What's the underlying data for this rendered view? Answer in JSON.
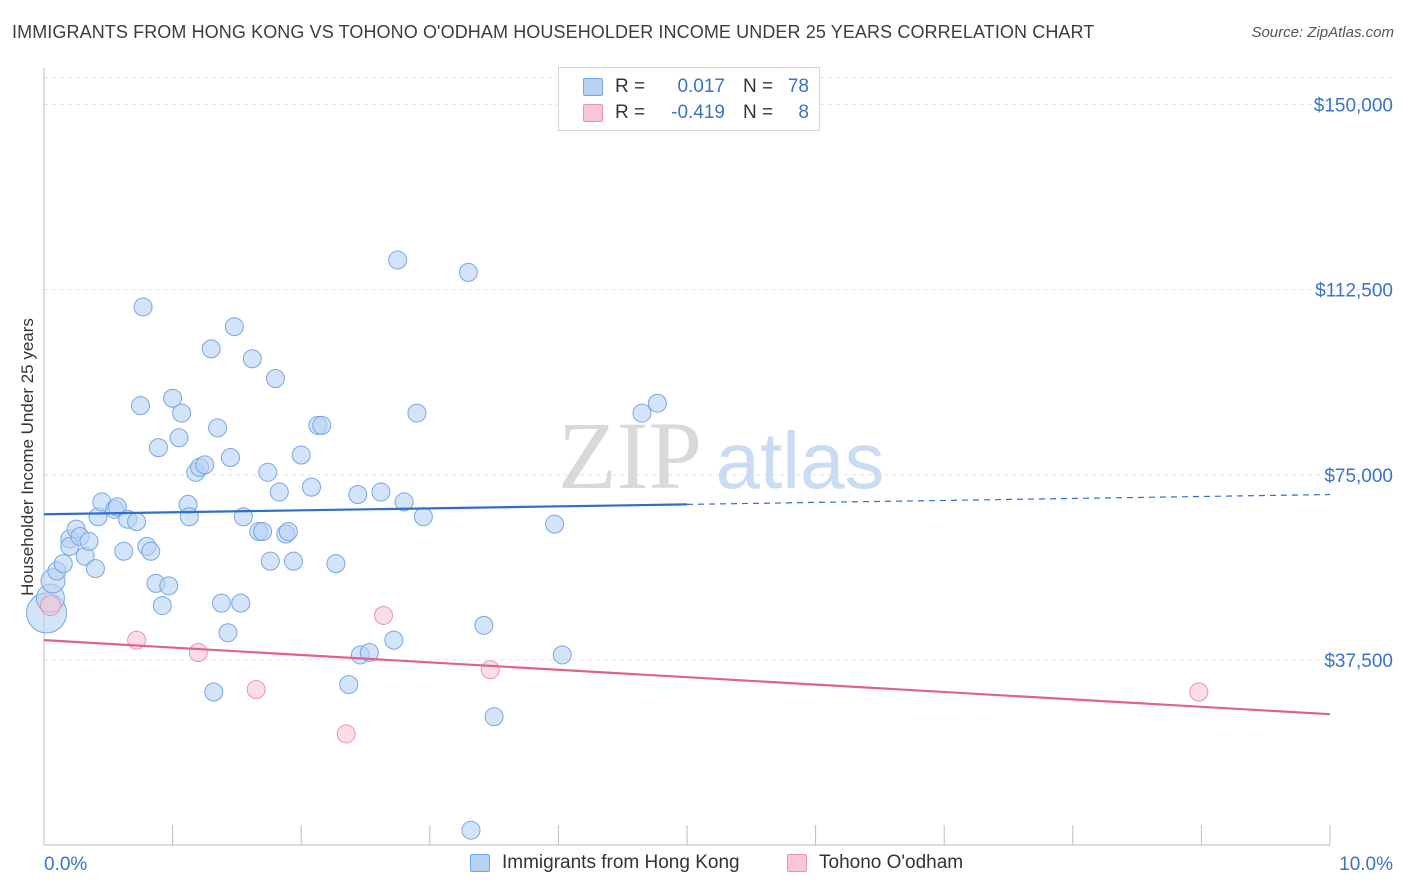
{
  "title": "IMMIGRANTS FROM HONG KONG VS TOHONO O'ODHAM HOUSEHOLDER INCOME UNDER 25 YEARS CORRELATION CHART",
  "source": "Source: ZipAtlas.com",
  "watermark": {
    "zip": "ZIP",
    "atlas": "atlas"
  },
  "legend": {
    "rows": [
      {
        "r_label": "R =",
        "r_value": "0.017",
        "n_label": "N =",
        "n_value": "78",
        "fill": "#b8d2f3",
        "stroke": "#7aa6e0"
      },
      {
        "r_label": "R =",
        "r_value": "-0.419",
        "n_label": "N =",
        "n_value": "8",
        "fill": "#f9c6d5",
        "stroke": "#ec94b0"
      }
    ]
  },
  "bottom_legend": [
    {
      "label": "Immigrants from Hong Kong",
      "fill": "#b8d2f3",
      "stroke": "#7aa6e0"
    },
    {
      "label": "Tohono O'odham",
      "fill": "#f9c6d5",
      "stroke": "#ec94b0"
    }
  ],
  "colors": {
    "blue_line": "#2f6fcc",
    "pink_line": "#e0608f",
    "tick_label": "#3a72c9",
    "grid": "#e3e3e3"
  },
  "chart_data": {
    "type": "scatter",
    "title": "IMMIGRANTS FROM HONG KONG VS TOHONO O'ODHAM HOUSEHOLDER INCOME UNDER 25 YEARS CORRELATION CHART",
    "xlabel": "",
    "ylabel": "Householder Income Under 25 years",
    "xlim": [
      0,
      10
    ],
    "ylim": [
      0,
      157000
    ],
    "x_tick_labels": [
      {
        "value": 0,
        "label": "0.0%"
      },
      {
        "value": 10,
        "label": "10.0%"
      }
    ],
    "y_ticks": [
      {
        "value": 37500,
        "label": "$37,500"
      },
      {
        "value": 75000,
        "label": "$75,000"
      },
      {
        "value": 112500,
        "label": "$112,500"
      },
      {
        "value": 150000,
        "label": "$150,000"
      }
    ],
    "grid": true,
    "series": [
      {
        "name": "Immigrants from Hong Kong",
        "color": "#b8d2f3",
        "stroke": "#7aa6e0",
        "trend": {
          "x0": 0,
          "y0": 67000,
          "x1": 5,
          "y1": 69000,
          "x_end": 10,
          "y_end": 71000,
          "solid_until": 5
        },
        "points": [
          [
            0.02,
            47000,
            20
          ],
          [
            0.05,
            50000,
            14
          ],
          [
            0.07,
            53500,
            12
          ],
          [
            0.1,
            55500,
            9
          ],
          [
            0.15,
            57000,
            9
          ],
          [
            0.2,
            62000,
            9
          ],
          [
            0.2,
            60500,
            9
          ],
          [
            0.25,
            64000,
            9
          ],
          [
            0.28,
            62500,
            9
          ],
          [
            0.32,
            58500,
            9
          ],
          [
            0.35,
            61500,
            9
          ],
          [
            0.4,
            56000,
            9
          ],
          [
            0.42,
            66500,
            9
          ],
          [
            0.45,
            69500,
            9
          ],
          [
            0.55,
            68000,
            9
          ],
          [
            0.57,
            68500,
            9
          ],
          [
            0.62,
            59500,
            9
          ],
          [
            0.65,
            66000,
            9
          ],
          [
            0.72,
            65500,
            9
          ],
          [
            0.75,
            89000,
            9
          ],
          [
            0.77,
            109000,
            9
          ],
          [
            0.8,
            60500,
            9
          ],
          [
            0.83,
            59500,
            9
          ],
          [
            0.87,
            53000,
            9
          ],
          [
            0.89,
            80500,
            9
          ],
          [
            0.92,
            48500,
            9
          ],
          [
            0.97,
            52500,
            9
          ],
          [
            1.0,
            90500,
            9
          ],
          [
            1.05,
            82500,
            9
          ],
          [
            1.07,
            87500,
            9
          ],
          [
            1.12,
            69000,
            9
          ],
          [
            1.13,
            66500,
            9
          ],
          [
            1.18,
            75500,
            9
          ],
          [
            1.21,
            76500,
            9
          ],
          [
            1.25,
            77000,
            9
          ],
          [
            1.3,
            100500,
            9
          ],
          [
            1.32,
            31000,
            9
          ],
          [
            1.35,
            84500,
            9
          ],
          [
            1.38,
            49000,
            9
          ],
          [
            1.43,
            43000,
            9
          ],
          [
            1.45,
            78500,
            9
          ],
          [
            1.48,
            105000,
            9
          ],
          [
            1.53,
            49000,
            9
          ],
          [
            1.55,
            66500,
            9
          ],
          [
            1.62,
            98500,
            9
          ],
          [
            1.67,
            63500,
            9
          ],
          [
            1.7,
            63500,
            9
          ],
          [
            1.74,
            75500,
            9
          ],
          [
            1.76,
            57500,
            9
          ],
          [
            1.8,
            94500,
            9
          ],
          [
            1.83,
            71500,
            9
          ],
          [
            1.88,
            63000,
            9
          ],
          [
            1.9,
            63500,
            9
          ],
          [
            1.94,
            57500,
            9
          ],
          [
            2.0,
            79000,
            9
          ],
          [
            2.08,
            72500,
            9
          ],
          [
            2.13,
            85000,
            9
          ],
          [
            2.16,
            85000,
            9
          ],
          [
            2.27,
            57000,
            9
          ],
          [
            2.37,
            32500,
            9
          ],
          [
            2.44,
            71000,
            9
          ],
          [
            2.46,
            38500,
            9
          ],
          [
            2.53,
            39000,
            9
          ],
          [
            2.62,
            71500,
            9
          ],
          [
            2.72,
            41500,
            9
          ],
          [
            2.75,
            118500,
            9
          ],
          [
            2.8,
            69500,
            9
          ],
          [
            2.9,
            87500,
            9
          ],
          [
            2.95,
            66500,
            9
          ],
          [
            3.3,
            116000,
            9
          ],
          [
            3.32,
            3000,
            9
          ],
          [
            3.42,
            44500,
            9
          ],
          [
            3.5,
            26000,
            9
          ],
          [
            3.97,
            65000,
            9
          ],
          [
            4.03,
            38500,
            9
          ],
          [
            4.65,
            87500,
            9
          ],
          [
            4.77,
            89500,
            9
          ]
        ]
      },
      {
        "name": "Tohono O'odham",
        "color": "#f9c6d5",
        "stroke": "#ec94b0",
        "trend": {
          "x0": 0,
          "y0": 41500,
          "x1": 10,
          "y1": 26500
        },
        "points": [
          [
            0.05,
            48500,
            10
          ],
          [
            0.72,
            41500,
            9
          ],
          [
            1.2,
            39000,
            9
          ],
          [
            1.65,
            31500,
            9
          ],
          [
            2.35,
            22500,
            9
          ],
          [
            2.64,
            46500,
            9
          ],
          [
            3.47,
            35500,
            9
          ],
          [
            8.98,
            31000,
            9
          ]
        ]
      }
    ]
  }
}
